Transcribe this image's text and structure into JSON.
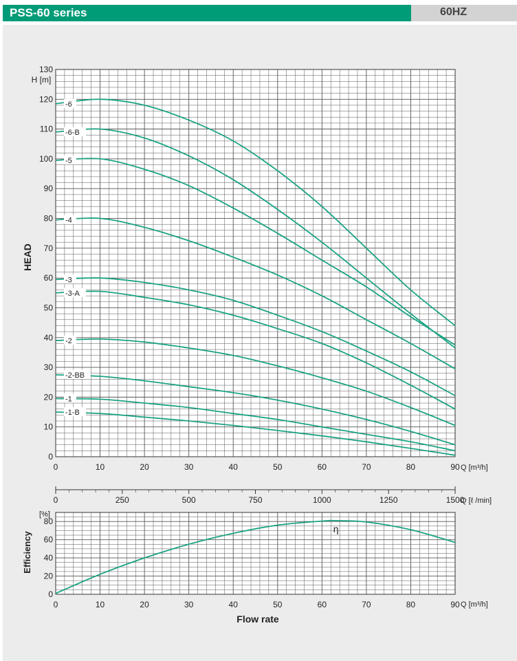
{
  "header": {
    "title": "PSS-60 series",
    "frequency": "60HZ",
    "accent_color": "#009b77",
    "freq_bg_color": "#d3d3d3"
  },
  "colors": {
    "curve": "#1aa383",
    "grid": "#555555",
    "background": "#ececec"
  },
  "chart_data": [
    {
      "type": "line",
      "ylabel": "HEAD",
      "yunit": "H [m]",
      "xunit": "Q [m³/h]",
      "xlim": [
        0,
        90
      ],
      "ylim": [
        0,
        130
      ],
      "x_ticks": [
        0,
        10,
        20,
        30,
        40,
        50,
        60,
        70,
        80,
        90
      ],
      "y_ticks": [
        0,
        10,
        20,
        30,
        40,
        50,
        60,
        70,
        80,
        90,
        100,
        110,
        120,
        130
      ],
      "grid": true,
      "series": [
        {
          "name": "-6",
          "x": [
            0,
            10,
            20,
            30,
            40,
            50,
            60,
            70,
            80,
            90
          ],
          "y": [
            118.5,
            120,
            118,
            113,
            106,
            96,
            84,
            70,
            56,
            44
          ]
        },
        {
          "name": "-6-B",
          "x": [
            0,
            10,
            20,
            30,
            40,
            50,
            60,
            70,
            80,
            90
          ],
          "y": [
            109,
            110,
            107,
            101,
            93,
            83,
            72,
            60,
            48,
            36.5
          ]
        },
        {
          "name": "-5",
          "x": [
            0,
            10,
            20,
            30,
            40,
            50,
            60,
            70,
            80,
            90
          ],
          "y": [
            99.5,
            100,
            96.5,
            91,
            83.5,
            75,
            66,
            57,
            47,
            37.5
          ]
        },
        {
          "name": "-4",
          "x": [
            0,
            10,
            20,
            30,
            40,
            50,
            60,
            70,
            80,
            90
          ],
          "y": [
            79.5,
            80,
            77,
            72.5,
            67,
            61,
            54,
            46,
            38,
            29.5
          ]
        },
        {
          "name": "-3",
          "x": [
            0,
            10,
            20,
            30,
            40,
            50,
            60,
            70,
            80,
            90
          ],
          "y": [
            59.5,
            60,
            58.5,
            56,
            52.5,
            47.5,
            42,
            35.5,
            28.5,
            20.5
          ]
        },
        {
          "name": "-3-A",
          "x": [
            0,
            10,
            20,
            30,
            40,
            50,
            60,
            70,
            80,
            90
          ],
          "y": [
            55,
            55.5,
            53.5,
            51,
            47.5,
            43,
            38,
            31.5,
            24,
            16
          ]
        },
        {
          "name": "-2",
          "x": [
            0,
            10,
            20,
            30,
            40,
            50,
            60,
            70,
            80,
            90
          ],
          "y": [
            39,
            39.5,
            38.5,
            36.5,
            34,
            30.5,
            26.5,
            22,
            16.5,
            10.5
          ]
        },
        {
          "name": "-2-BB",
          "x": [
            0,
            10,
            20,
            30,
            40,
            50,
            60,
            70,
            80,
            90
          ],
          "y": [
            27.5,
            27,
            25.5,
            23.5,
            21.5,
            19,
            16,
            12.5,
            8.5,
            4
          ]
        },
        {
          "name": "-1",
          "x": [
            0,
            10,
            20,
            30,
            40,
            50,
            60,
            70,
            80,
            90
          ],
          "y": [
            19.5,
            19.3,
            18,
            16.5,
            14.5,
            12.5,
            10,
            7.5,
            5,
            2
          ]
        },
        {
          "name": "-1-B",
          "x": [
            0,
            10,
            20,
            30,
            40,
            50,
            60,
            70,
            80,
            90
          ],
          "y": [
            15,
            14.5,
            13.3,
            12,
            10.5,
            8.8,
            7,
            5,
            2.8,
            0.5
          ]
        }
      ]
    },
    {
      "type": "axis",
      "xunit": "Q [ℓ /min]",
      "xlim": [
        0,
        1500
      ],
      "x_ticks": [
        0,
        250,
        500,
        750,
        1000,
        1250,
        1500
      ]
    },
    {
      "type": "line",
      "ylabel": "Efficiency",
      "yunit": "[%]",
      "xlabel": "Flow rate",
      "xunit": "Q [m³/h]",
      "xlim": [
        0,
        90
      ],
      "ylim": [
        0,
        90
      ],
      "x_ticks": [
        0,
        10,
        20,
        30,
        40,
        50,
        60,
        70,
        80,
        90
      ],
      "y_ticks": [
        0,
        20,
        40,
        60,
        80
      ],
      "grid": true,
      "series": [
        {
          "name": "η",
          "x": [
            0,
            10,
            20,
            30,
            40,
            50,
            60,
            63,
            70,
            80,
            90
          ],
          "y": [
            1,
            22,
            40,
            55,
            67,
            76,
            80.5,
            81,
            79.5,
            71,
            57
          ]
        }
      ]
    }
  ]
}
